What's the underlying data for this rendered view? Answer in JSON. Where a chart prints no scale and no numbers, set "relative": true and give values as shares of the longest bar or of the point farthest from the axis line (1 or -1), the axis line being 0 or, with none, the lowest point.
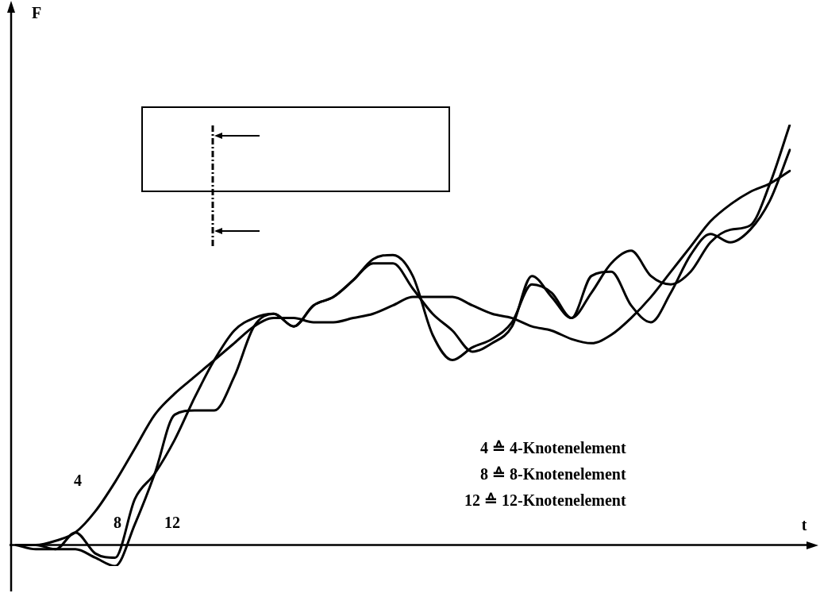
{
  "chart_data": {
    "type": "line",
    "relative": true,
    "xlabel": "t",
    "grid": false,
    "legend": false,
    "marker": "none",
    "line_style": "solid",
    "categories": [
      null,
      null,
      null,
      null,
      null,
      null,
      null,
      null,
      null,
      null,
      null,
      null,
      null,
      null,
      null,
      null,
      null,
      null,
      null,
      null,
      null,
      null,
      null,
      null,
      null,
      null,
      null,
      null,
      null,
      null,
      null,
      null,
      null,
      null,
      null,
      null,
      null,
      null,
      null,
      null
    ],
    "series": [
      {
        "name": "4",
        "color": "#000000",
        "values": [
          0,
          0,
          0.01,
          0.03,
          0.08,
          0.15,
          0.23,
          0.31,
          0.36,
          0.4,
          0.44,
          0.48,
          0.52,
          0.54,
          0.54,
          0.53,
          0.53,
          0.54,
          0.55,
          0.57,
          0.59,
          0.59,
          0.59,
          0.57,
          0.55,
          0.54,
          0.52,
          0.51,
          0.49,
          0.48,
          0.5,
          0.54,
          0.59,
          0.65,
          0.71,
          0.77,
          0.81,
          0.84,
          0.86,
          0.89
        ]
      },
      {
        "name": "8",
        "color": "#000000",
        "values": [
          0,
          -0.01,
          -0.01,
          0.03,
          -0.02,
          -0.03,
          0.11,
          0.17,
          0.25,
          0.35,
          0.44,
          0.51,
          0.54,
          0.55,
          0.52,
          0.57,
          0.59,
          0.63,
          0.68,
          0.69,
          0.64,
          0.5,
          0.44,
          0.47,
          0.49,
          0.53,
          0.62,
          0.6,
          0.54,
          0.6,
          0.67,
          0.7,
          0.64,
          0.62,
          0.65,
          0.72,
          0.75,
          0.76,
          0.86,
          1.0
        ]
      },
      {
        "name": "12",
        "color": "#000000",
        "values": [
          0,
          0,
          -0.01,
          -0.01,
          -0.03,
          -0.05,
          0.05,
          0.17,
          0.31,
          0.32,
          0.32,
          0.4,
          0.52,
          0.55,
          0.52,
          0.57,
          0.59,
          0.63,
          0.67,
          0.67,
          0.61,
          0.55,
          0.51,
          0.46,
          0.48,
          0.52,
          0.64,
          0.59,
          0.54,
          0.64,
          0.65,
          0.57,
          0.53,
          0.6,
          0.69,
          0.74,
          0.72,
          0.75,
          0.82,
          0.94
        ]
      }
    ],
    "annotations": [
      "F",
      "4 ≙ 4-Knotenelement",
      "8 ≙ 8-Knotenelement",
      "12 ≙ 12-Knotenelement"
    ]
  }
}
